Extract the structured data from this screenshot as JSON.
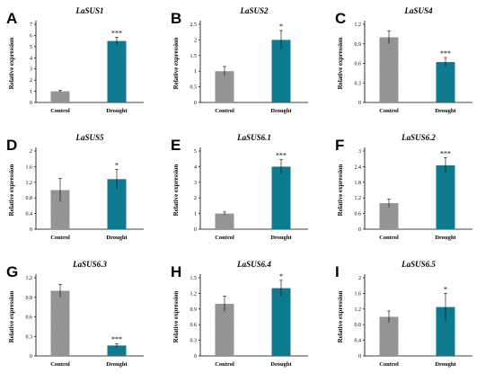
{
  "colors": {
    "control": "#8c8c8c",
    "drought": "#0e7a8f",
    "axis": "#000000",
    "error": "#000000"
  },
  "chart_data": [
    {
      "type": "bar",
      "letter": "A",
      "title": "LaSUS1",
      "ylabel": "Relative expression",
      "categories": [
        "Control",
        "Drought"
      ],
      "values": [
        1.0,
        5.5
      ],
      "errors": [
        0.1,
        0.35
      ],
      "significance": [
        "",
        "***"
      ],
      "ylim": [
        0,
        7
      ],
      "yticks": [
        {
          "v": 0,
          "t": "0"
        },
        {
          "v": 1,
          "t": "1"
        },
        {
          "v": 2,
          "t": "2"
        },
        {
          "v": 3,
          "t": "3"
        },
        {
          "v": 4,
          "t": "4"
        },
        {
          "v": 5,
          "t": "5"
        },
        {
          "v": 6,
          "t": "6"
        },
        {
          "v": 7,
          "t": "7"
        }
      ]
    },
    {
      "type": "bar",
      "letter": "B",
      "title": "LaSUS2",
      "ylabel": "Relative expression",
      "categories": [
        "Control",
        "Drought"
      ],
      "values": [
        1.0,
        2.0
      ],
      "errors": [
        0.15,
        0.3
      ],
      "significance": [
        "",
        "*"
      ],
      "ylim": [
        0,
        2.5
      ],
      "yticks": [
        {
          "v": 0,
          "t": "0"
        },
        {
          "v": 0.5,
          "t": "0.5"
        },
        {
          "v": 1,
          "t": "1"
        },
        {
          "v": 1.5,
          "t": "1.5"
        },
        {
          "v": 2,
          "t": "2"
        },
        {
          "v": 2.5,
          "t": "2.5"
        }
      ]
    },
    {
      "type": "bar",
      "letter": "C",
      "title": "LaSUS4",
      "ylabel": "Relative expression",
      "categories": [
        "Control",
        "Drought"
      ],
      "values": [
        1.0,
        0.62
      ],
      "errors": [
        0.1,
        0.07
      ],
      "significance": [
        "",
        "***"
      ],
      "ylim": [
        0,
        1.2
      ],
      "yticks": [
        {
          "v": 0,
          "t": "0"
        },
        {
          "v": 0.3,
          "t": "0.3"
        },
        {
          "v": 0.6,
          "t": "0.6"
        },
        {
          "v": 0.9,
          "t": "0.9"
        },
        {
          "v": 1.2,
          "t": "1.2"
        }
      ]
    },
    {
      "type": "bar",
      "letter": "D",
      "title": "LaSUS5",
      "ylabel": "Relative expression",
      "categories": [
        "Control",
        "Drought"
      ],
      "values": [
        1.0,
        1.28
      ],
      "errors": [
        0.3,
        0.25
      ],
      "significance": [
        "",
        "*"
      ],
      "ylim": [
        0,
        2.0
      ],
      "yticks": [
        {
          "v": 0,
          "t": "0"
        },
        {
          "v": 0.4,
          "t": "0.4"
        },
        {
          "v": 0.8,
          "t": "0.8"
        },
        {
          "v": 1.2,
          "t": "1.2"
        },
        {
          "v": 1.6,
          "t": "1.6"
        },
        {
          "v": 2.0,
          "t": "2"
        }
      ]
    },
    {
      "type": "bar",
      "letter": "E",
      "title": "LaSUS6.1",
      "ylabel": "Relative expression",
      "categories": [
        "Control",
        "Drought"
      ],
      "values": [
        1.0,
        4.0
      ],
      "errors": [
        0.1,
        0.45
      ],
      "significance": [
        "",
        "***"
      ],
      "ylim": [
        0,
        5
      ],
      "yticks": [
        {
          "v": 0,
          "t": "0"
        },
        {
          "v": 1,
          "t": "1"
        },
        {
          "v": 2,
          "t": "2"
        },
        {
          "v": 3,
          "t": "3"
        },
        {
          "v": 4,
          "t": "4"
        },
        {
          "v": 5,
          "t": "5"
        }
      ]
    },
    {
      "type": "bar",
      "letter": "F",
      "title": "LaSUS6.2",
      "ylabel": "Relative expression",
      "categories": [
        "Control",
        "Drought"
      ],
      "values": [
        1.0,
        2.45
      ],
      "errors": [
        0.15,
        0.3
      ],
      "significance": [
        "",
        "***"
      ],
      "ylim": [
        0,
        3
      ],
      "yticks": [
        {
          "v": 0,
          "t": "0"
        },
        {
          "v": 0.6,
          "t": "0.6"
        },
        {
          "v": 1.2,
          "t": "1.2"
        },
        {
          "v": 1.8,
          "t": "1.8"
        },
        {
          "v": 2.4,
          "t": "2.4"
        },
        {
          "v": 3,
          "t": "3"
        }
      ]
    },
    {
      "type": "bar",
      "letter": "G",
      "title": "LaSUS6.3",
      "ylabel": "Relative expression",
      "categories": [
        "Control",
        "Drought"
      ],
      "values": [
        1.0,
        0.16
      ],
      "errors": [
        0.1,
        0.03
      ],
      "significance": [
        "",
        "***"
      ],
      "ylim": [
        0,
        1.2
      ],
      "yticks": [
        {
          "v": 0,
          "t": "0"
        },
        {
          "v": 0.3,
          "t": "0.3"
        },
        {
          "v": 0.6,
          "t": "0.6"
        },
        {
          "v": 0.9,
          "t": "0.9"
        },
        {
          "v": 1.2,
          "t": "1.2"
        }
      ]
    },
    {
      "type": "bar",
      "letter": "H",
      "title": "LaSUS6.4",
      "ylabel": "Relative expression",
      "categories": [
        "Control",
        "Drought"
      ],
      "values": [
        1.0,
        1.3
      ],
      "errors": [
        0.15,
        0.15
      ],
      "significance": [
        "",
        "*"
      ],
      "ylim": [
        0,
        1.5
      ],
      "yticks": [
        {
          "v": 0,
          "t": "0"
        },
        {
          "v": 0.3,
          "t": "0.3"
        },
        {
          "v": 0.6,
          "t": "0.6"
        },
        {
          "v": 0.9,
          "t": "0.9"
        },
        {
          "v": 1.2,
          "t": "1.2"
        },
        {
          "v": 1.5,
          "t": "1.5"
        }
      ]
    },
    {
      "type": "bar",
      "letter": "I",
      "title": "LaSUS6.5",
      "ylabel": "Relative expression",
      "categories": [
        "Control",
        "Drought"
      ],
      "values": [
        1.0,
        1.25
      ],
      "errors": [
        0.15,
        0.35
      ],
      "significance": [
        "",
        "*"
      ],
      "ylim": [
        0,
        2.0
      ],
      "yticks": [
        {
          "v": 0,
          "t": "0"
        },
        {
          "v": 0.4,
          "t": "0.4"
        },
        {
          "v": 0.8,
          "t": "0.8"
        },
        {
          "v": 1.2,
          "t": "1.2"
        },
        {
          "v": 1.6,
          "t": "1.6"
        },
        {
          "v": 2.0,
          "t": "2"
        }
      ]
    }
  ]
}
